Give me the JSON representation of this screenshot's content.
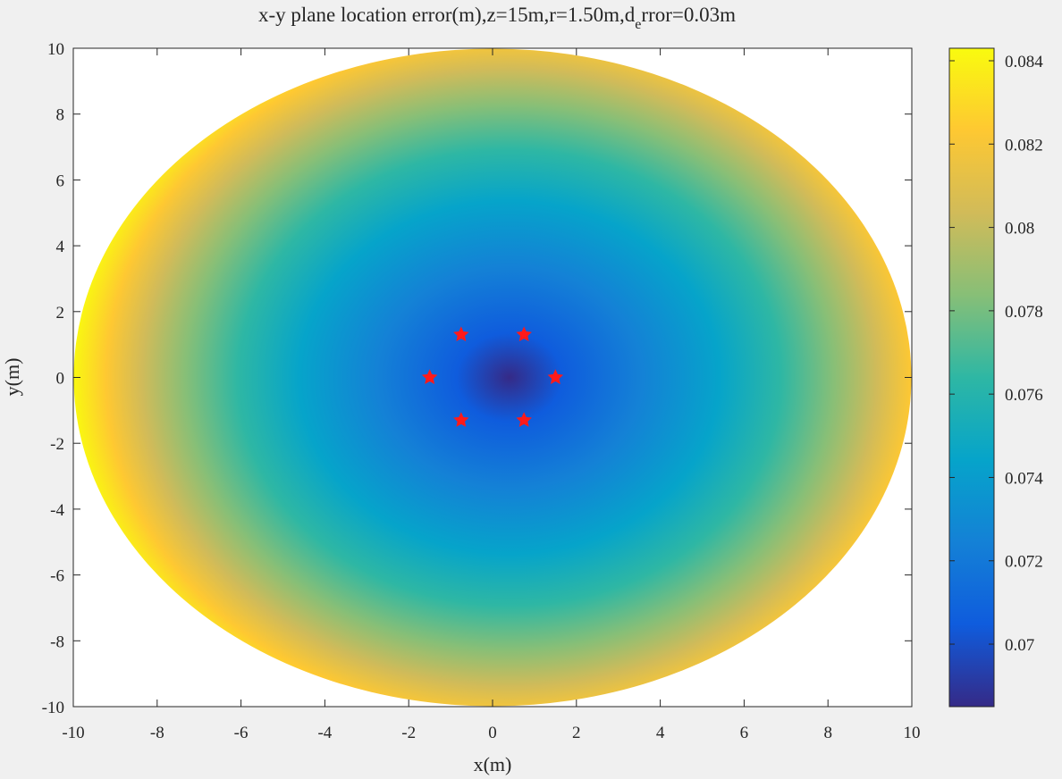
{
  "chart_data": {
    "type": "heatmap",
    "title_main": "x-y plane location error(m),z=15m,r=1.50m,d",
    "title_sub": "e",
    "title_tail": "rror=0.03m",
    "xlabel": "x(m)",
    "ylabel": "y(m)",
    "xlim": [
      -10,
      10
    ],
    "ylim": [
      -10,
      10
    ],
    "x_ticks": [
      -10,
      -8,
      -6,
      -4,
      -2,
      0,
      2,
      4,
      6,
      8,
      10
    ],
    "y_ticks": [
      -10,
      -8,
      -6,
      -4,
      -2,
      0,
      2,
      4,
      6,
      8,
      10
    ],
    "x_tick_labels": [
      "-10",
      "-8",
      "-6",
      "-4",
      "-2",
      "0",
      "2",
      "4",
      "6",
      "8",
      "10"
    ],
    "y_tick_labels": [
      "-10",
      "-8",
      "-6",
      "-4",
      "-2",
      "0",
      "2",
      "4",
      "6",
      "8",
      "10"
    ],
    "grid": false,
    "region": "disk of radius 10 centered at origin",
    "field_min_center": [
      0.4,
      0
    ],
    "colormap": "parula",
    "colormap_stops": [
      "#352a87",
      "#0f5cdd",
      "#1481d6",
      "#06a4ca",
      "#2eb7a4",
      "#87bf77",
      "#d1bb59",
      "#fec832",
      "#f9fb0e"
    ],
    "color_range": [
      0.0685,
      0.0843
    ],
    "colorbar_ticks": [
      0.07,
      0.072,
      0.074,
      0.076,
      0.078,
      0.08,
      0.082,
      0.084
    ],
    "colorbar_tick_labels": [
      "0.07",
      "0.072",
      "0.074",
      "0.076",
      "0.078",
      "0.08",
      "0.082",
      "0.084"
    ],
    "markers": {
      "color": "#ff1a1a",
      "symbol": "star",
      "points": [
        {
          "x": 1.5,
          "y": 0
        },
        {
          "x": 0.75,
          "y": 1.3
        },
        {
          "x": -0.75,
          "y": 1.3
        },
        {
          "x": -1.5,
          "y": 0
        },
        {
          "x": -0.75,
          "y": -1.3
        },
        {
          "x": 0.75,
          "y": -1.3
        }
      ]
    }
  }
}
